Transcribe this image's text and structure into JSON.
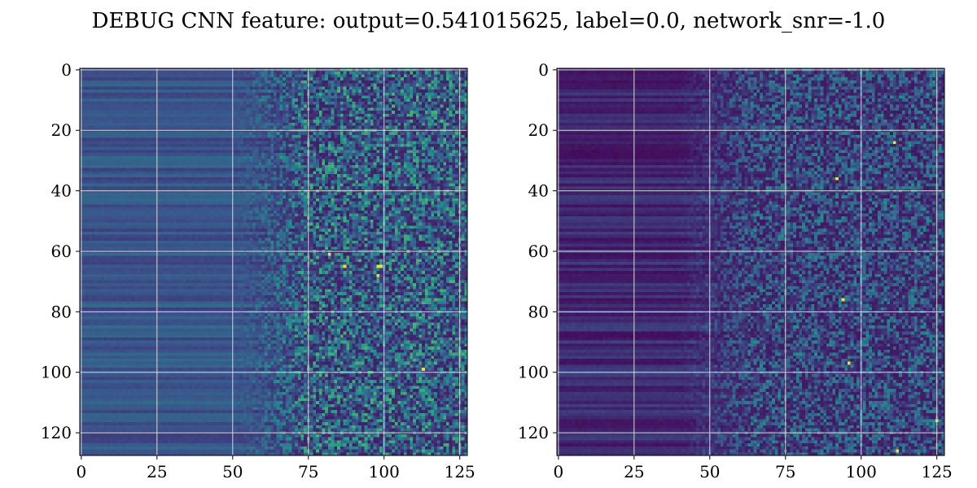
{
  "title": "DEBUG CNN feature: output=0.541015625, label=0.0, network_snr=-1.0",
  "colormap": [
    "#440154",
    "#3b528b",
    "#21918c",
    "#5ec962",
    "#fde725"
  ],
  "grid_color": "#d9d9d9",
  "chart_data": [
    {
      "type": "heatmap",
      "panel": "left",
      "rows": 128,
      "cols": 128,
      "xlim": [
        -0.5,
        127.5
      ],
      "ylim": [
        127.5,
        -0.5
      ],
      "xticks": [
        0,
        25,
        50,
        75,
        100,
        125
      ],
      "yticks": [
        0,
        20,
        40,
        60,
        80,
        100,
        120
      ],
      "grid": true,
      "value_range": [
        0,
        1
      ],
      "profile": {
        "smooth_mean": 0.27,
        "noise_start_col": 75,
        "noise_mean": 0.3,
        "hot_spots": [
          [
            65,
            98
          ],
          [
            65,
            99
          ],
          [
            65,
            87
          ],
          [
            61,
            82
          ],
          [
            68,
            98
          ],
          [
            99,
            113
          ]
        ]
      }
    },
    {
      "type": "heatmap",
      "panel": "right",
      "rows": 128,
      "cols": 128,
      "xlim": [
        -0.5,
        127.5
      ],
      "ylim": [
        127.5,
        -0.5
      ],
      "xticks": [
        0,
        25,
        50,
        75,
        100,
        125
      ],
      "yticks": [
        0,
        20,
        40,
        60,
        80,
        100,
        120
      ],
      "grid": true,
      "value_range": [
        0,
        1
      ],
      "profile": {
        "smooth_mean": 0.12,
        "noise_start_col": 65,
        "noise_mean": 0.22,
        "hot_spots": [
          [
            24,
            111
          ],
          [
            36,
            92
          ],
          [
            76,
            94
          ],
          [
            126,
            112
          ],
          [
            116,
            125
          ],
          [
            97,
            96
          ]
        ]
      }
    }
  ]
}
